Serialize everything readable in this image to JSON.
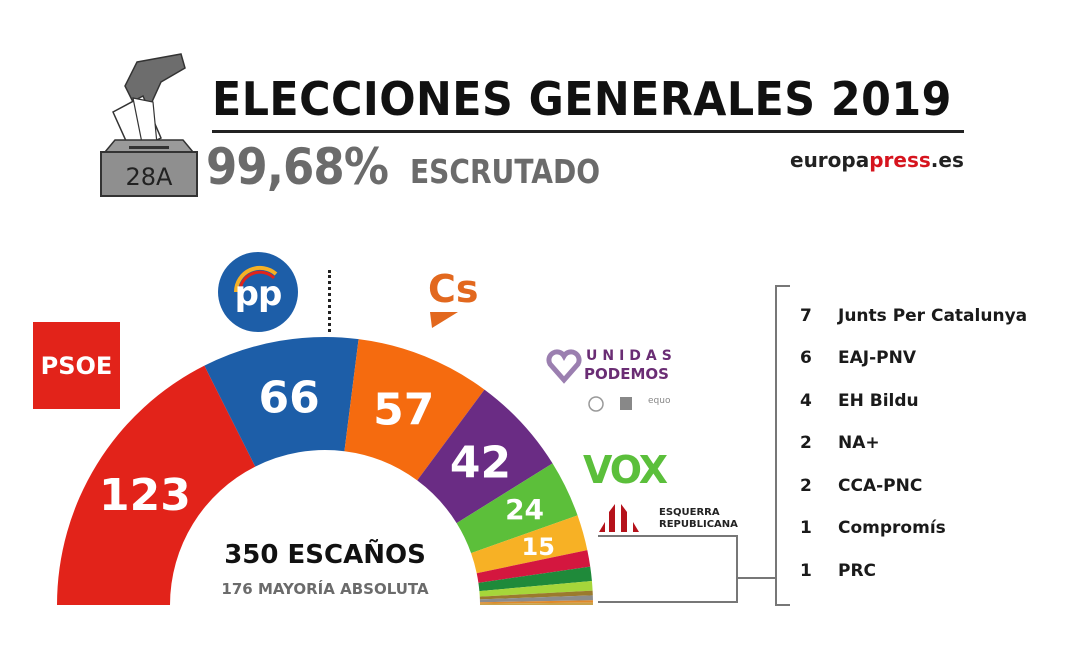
{
  "header": {
    "title": "ELECCIONES GENERALES 2019",
    "scrutiny_percent": "99,68%",
    "scrutiny_label": "ESCRUTADO",
    "source_prefix": "europa",
    "source_highlight": "press",
    "source_suffix": ".es",
    "ballot_box_label": "28A"
  },
  "center": {
    "total_seats": "350 ESCAÑOS",
    "majority": "176 MAYORÍA ABSOLUTA"
  },
  "logos": {
    "psoe": "PSOE",
    "pp": "pp",
    "cs": "Cs",
    "podemos_line1": "UNIDAS",
    "podemos_line2": "PODEMOS",
    "podemos_partner": "equo",
    "vox": "VOX",
    "erc_line1": "ESQUERRA",
    "erc_line2": "REPUBLICANA"
  },
  "others": [
    {
      "seats": "7",
      "name": "Junts Per Catalunya"
    },
    {
      "seats": "6",
      "name": "EAJ-PNV"
    },
    {
      "seats": "4",
      "name": "EH Bildu"
    },
    {
      "seats": "2",
      "name": "NA+"
    },
    {
      "seats": "2",
      "name": "CCA-PNC"
    },
    {
      "seats": "1",
      "name": "Compromís"
    },
    {
      "seats": "1",
      "name": "PRC"
    }
  ],
  "chart_data": {
    "type": "pie",
    "subtype": "parliament-semicircle",
    "title": "ELECCIONES GENERALES 2019",
    "subtitle": "99,68% ESCRUTADO",
    "total": 350,
    "majority": 176,
    "categories": [
      "PSOE",
      "PP",
      "Cs",
      "Unidas Podemos",
      "VOX",
      "ERC",
      "Junts Per Catalunya",
      "EAJ-PNV",
      "EH Bildu",
      "NA+",
      "CCA-PNC",
      "Compromís",
      "PRC"
    ],
    "values": [
      123,
      66,
      57,
      42,
      24,
      15,
      7,
      6,
      4,
      2,
      2,
      1,
      1
    ],
    "labels_shown": [
      "123",
      "66",
      "57",
      "42",
      "24",
      "15"
    ],
    "colors": [
      "#e2231a",
      "#1d5ea8",
      "#f56b0f",
      "#6a2c84",
      "#5cbf3a",
      "#f7b125",
      "#d4173f",
      "#1f8a3a",
      "#a6d63a",
      "#9b7a2e",
      "#8c8c8c",
      "#e08a2a",
      "#c9a24a"
    ],
    "annotations": [
      "350 ESCAÑOS",
      "176 MAYORÍA ABSOLUTA"
    ],
    "legend_position": "right (small parties list)"
  }
}
